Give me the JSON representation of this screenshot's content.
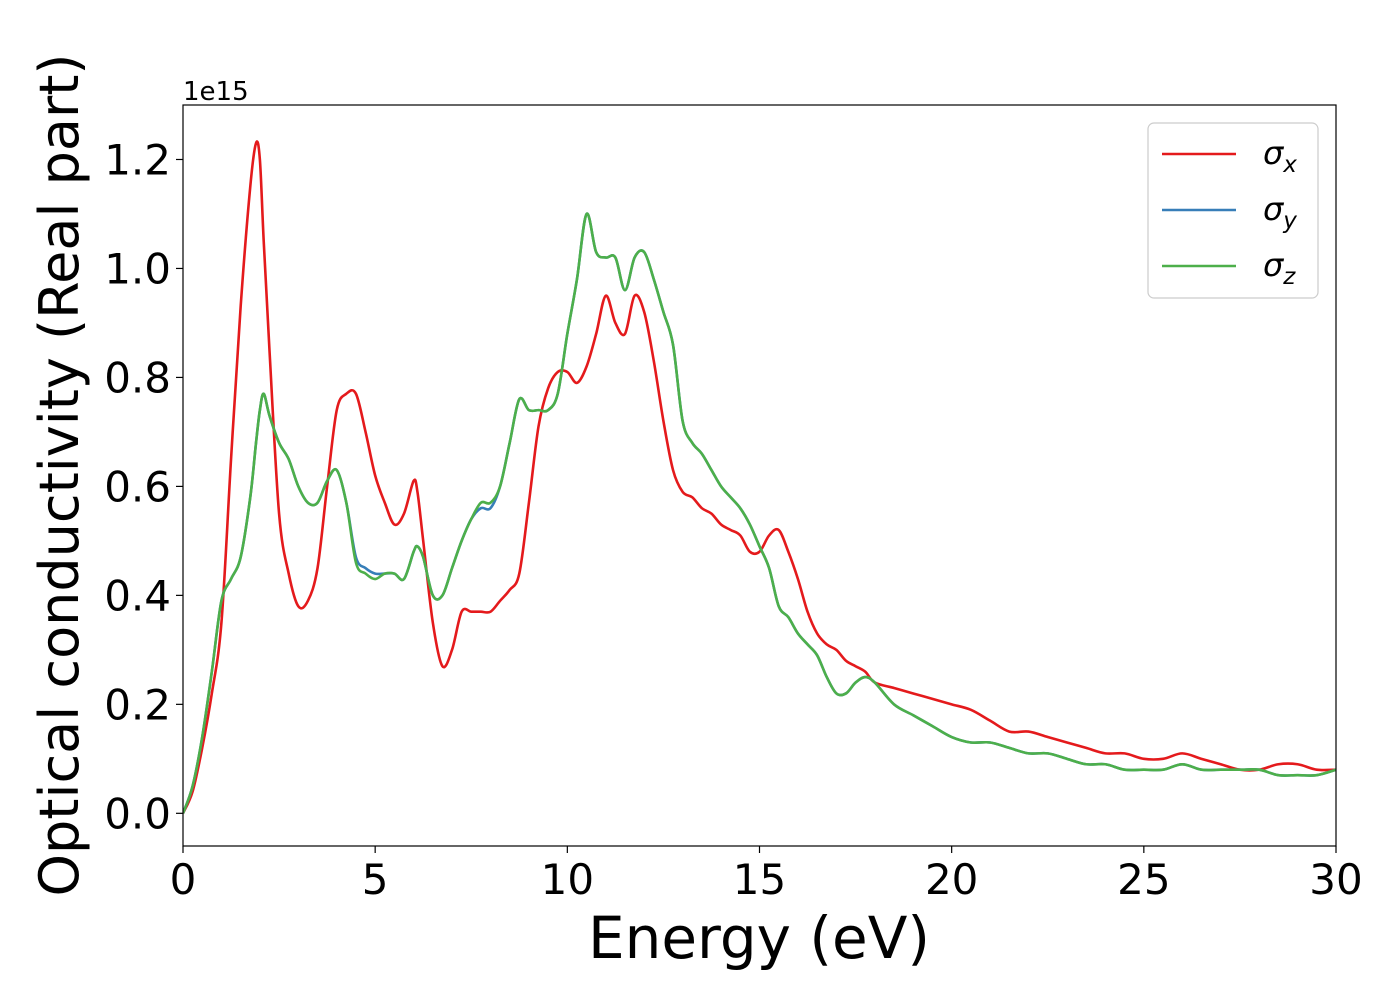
{
  "chart_data": {
    "type": "line",
    "title": "",
    "xlabel": "Energy (eV)",
    "ylabel": "Optical conductivity (Real part)",
    "y_offset_label": "1e15",
    "xlim": [
      0,
      30
    ],
    "ylim": [
      -0.06,
      1.3
    ],
    "x_ticks": [
      0,
      5,
      10,
      15,
      20,
      25,
      30
    ],
    "x_tick_labels": [
      "0",
      "5",
      "10",
      "15",
      "20",
      "25",
      "30"
    ],
    "y_ticks": [
      0.0,
      0.2,
      0.4,
      0.6,
      0.8,
      1.0,
      1.2
    ],
    "y_tick_labels": [
      "0.0",
      "0.2",
      "0.4",
      "0.6",
      "0.8",
      "1.0",
      "1.2"
    ],
    "grid": false,
    "legend_position": "top-right",
    "x": [
      0,
      0.25,
      0.5,
      0.75,
      1.0,
      1.25,
      1.5,
      1.75,
      1.9,
      2.0,
      2.1,
      2.25,
      2.5,
      2.75,
      3.0,
      3.25,
      3.5,
      3.75,
      4.0,
      4.25,
      4.5,
      4.75,
      5.0,
      5.25,
      5.5,
      5.75,
      6.0,
      6.1,
      6.25,
      6.5,
      6.75,
      7.0,
      7.25,
      7.5,
      7.75,
      8.0,
      8.25,
      8.5,
      8.75,
      9.0,
      9.25,
      9.5,
      9.75,
      10.0,
      10.25,
      10.5,
      10.75,
      11.0,
      11.25,
      11.5,
      11.75,
      12.0,
      12.25,
      12.5,
      12.75,
      13.0,
      13.25,
      13.5,
      13.75,
      14.0,
      14.25,
      14.5,
      14.75,
      15.0,
      15.25,
      15.5,
      15.75,
      16.0,
      16.25,
      16.5,
      16.75,
      17.0,
      17.25,
      17.5,
      17.75,
      18.0,
      18.5,
      19.0,
      19.5,
      20.0,
      20.5,
      21.0,
      21.5,
      22.0,
      22.5,
      23.0,
      23.5,
      24.0,
      24.5,
      25.0,
      25.5,
      26.0,
      26.5,
      27.0,
      27.5,
      28.0,
      28.5,
      29.0,
      29.5,
      30.0
    ],
    "series": [
      {
        "name": "σx",
        "color": "#e41a1c",
        "values": [
          0.0,
          0.04,
          0.12,
          0.22,
          0.35,
          0.65,
          0.93,
          1.15,
          1.23,
          1.2,
          1.05,
          0.85,
          0.55,
          0.44,
          0.38,
          0.39,
          0.45,
          0.6,
          0.74,
          0.77,
          0.77,
          0.7,
          0.62,
          0.57,
          0.53,
          0.55,
          0.61,
          0.59,
          0.5,
          0.35,
          0.27,
          0.3,
          0.37,
          0.37,
          0.37,
          0.37,
          0.39,
          0.41,
          0.44,
          0.57,
          0.71,
          0.78,
          0.81,
          0.81,
          0.79,
          0.82,
          0.88,
          0.95,
          0.9,
          0.88,
          0.95,
          0.92,
          0.83,
          0.72,
          0.63,
          0.59,
          0.58,
          0.56,
          0.55,
          0.53,
          0.52,
          0.51,
          0.48,
          0.48,
          0.51,
          0.52,
          0.48,
          0.43,
          0.37,
          0.33,
          0.31,
          0.3,
          0.28,
          0.27,
          0.26,
          0.24,
          0.23,
          0.22,
          0.21,
          0.2,
          0.19,
          0.17,
          0.15,
          0.15,
          0.14,
          0.13,
          0.12,
          0.11,
          0.11,
          0.1,
          0.1,
          0.11,
          0.1,
          0.09,
          0.08,
          0.08,
          0.09,
          0.09,
          0.08,
          0.08
        ]
      },
      {
        "name": "σy",
        "color": "#377eb8",
        "values": [
          0.0,
          0.05,
          0.14,
          0.26,
          0.39,
          0.43,
          0.47,
          0.58,
          0.68,
          0.74,
          0.77,
          0.73,
          0.68,
          0.65,
          0.6,
          0.57,
          0.57,
          0.61,
          0.63,
          0.57,
          0.47,
          0.45,
          0.44,
          0.44,
          0.44,
          0.43,
          0.48,
          0.49,
          0.47,
          0.4,
          0.4,
          0.45,
          0.5,
          0.54,
          0.56,
          0.56,
          0.6,
          0.68,
          0.76,
          0.74,
          0.74,
          0.74,
          0.77,
          0.88,
          0.98,
          1.1,
          1.03,
          1.02,
          1.02,
          0.96,
          1.02,
          1.03,
          0.98,
          0.92,
          0.86,
          0.72,
          0.68,
          0.66,
          0.63,
          0.6,
          0.58,
          0.56,
          0.53,
          0.49,
          0.45,
          0.38,
          0.36,
          0.33,
          0.31,
          0.29,
          0.25,
          0.22,
          0.22,
          0.24,
          0.25,
          0.24,
          0.2,
          0.18,
          0.16,
          0.14,
          0.13,
          0.13,
          0.12,
          0.11,
          0.11,
          0.1,
          0.09,
          0.09,
          0.08,
          0.08,
          0.08,
          0.09,
          0.08,
          0.08,
          0.08,
          0.08,
          0.07,
          0.07,
          0.07,
          0.08
        ]
      },
      {
        "name": "σz",
        "color": "#4daf4a",
        "values": [
          0.0,
          0.05,
          0.14,
          0.26,
          0.39,
          0.43,
          0.47,
          0.58,
          0.68,
          0.74,
          0.77,
          0.73,
          0.68,
          0.65,
          0.6,
          0.57,
          0.57,
          0.61,
          0.63,
          0.57,
          0.46,
          0.44,
          0.43,
          0.44,
          0.44,
          0.43,
          0.48,
          0.49,
          0.47,
          0.4,
          0.4,
          0.45,
          0.5,
          0.54,
          0.57,
          0.57,
          0.6,
          0.68,
          0.76,
          0.74,
          0.74,
          0.74,
          0.77,
          0.88,
          0.98,
          1.1,
          1.03,
          1.02,
          1.02,
          0.96,
          1.02,
          1.03,
          0.98,
          0.92,
          0.86,
          0.72,
          0.68,
          0.66,
          0.63,
          0.6,
          0.58,
          0.56,
          0.53,
          0.49,
          0.45,
          0.38,
          0.36,
          0.33,
          0.31,
          0.29,
          0.25,
          0.22,
          0.22,
          0.24,
          0.25,
          0.24,
          0.2,
          0.18,
          0.16,
          0.14,
          0.13,
          0.13,
          0.12,
          0.11,
          0.11,
          0.1,
          0.09,
          0.09,
          0.08,
          0.08,
          0.08,
          0.09,
          0.08,
          0.08,
          0.08,
          0.08,
          0.07,
          0.07,
          0.07,
          0.08
        ]
      }
    ]
  }
}
